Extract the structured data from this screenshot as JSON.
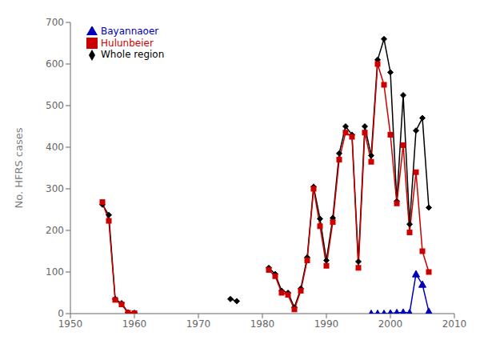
{
  "chart_data": {
    "type": "line",
    "ylabel": "No. HFRS cases",
    "xlim": [
      1950,
      2010
    ],
    "ylim": [
      0,
      700
    ],
    "xticks": [
      1950,
      1960,
      1970,
      1980,
      1990,
      2000,
      2010
    ],
    "yticks": [
      0,
      100,
      200,
      300,
      400,
      500,
      600,
      700
    ],
    "grid": false,
    "legend": "upper left",
    "x": [
      1955,
      1956,
      1957,
      1958,
      1959,
      1960,
      1961,
      1962,
      1963,
      1964,
      1965,
      1966,
      1967,
      1968,
      1969,
      1970,
      1971,
      1972,
      1973,
      1974,
      1975,
      1976,
      1977,
      1978,
      1979,
      1980,
      1981,
      1982,
      1983,
      1984,
      1985,
      1986,
      1987,
      1988,
      1989,
      1990,
      1991,
      1992,
      1993,
      1994,
      1995,
      1996,
      1997,
      1998,
      1999,
      2000,
      2001,
      2002,
      2003,
      2004,
      2005,
      2006
    ],
    "series": [
      {
        "name": "Whole region",
        "color": "#000000",
        "marker": "diamond",
        "values": [
          262,
          237,
          35,
          25,
          3,
          2,
          null,
          null,
          null,
          null,
          null,
          null,
          null,
          null,
          null,
          null,
          null,
          null,
          null,
          null,
          35,
          30,
          null,
          null,
          null,
          null,
          110,
          95,
          55,
          50,
          15,
          60,
          135,
          305,
          228,
          128,
          230,
          385,
          450,
          430,
          125,
          450,
          380,
          610,
          660,
          580,
          270,
          525,
          215,
          440,
          470,
          255
        ]
      },
      {
        "name": "Hulunbeier",
        "color": "#cc0000",
        "marker": "square",
        "values": [
          268,
          223,
          33,
          22,
          2,
          1,
          null,
          null,
          null,
          null,
          null,
          null,
          null,
          null,
          null,
          null,
          null,
          null,
          null,
          null,
          null,
          null,
          null,
          null,
          null,
          null,
          105,
          90,
          50,
          45,
          10,
          55,
          128,
          300,
          210,
          115,
          220,
          370,
          435,
          425,
          110,
          435,
          365,
          600,
          550,
          430,
          265,
          405,
          195,
          340,
          150,
          100
        ]
      },
      {
        "name": "Bayannaoer",
        "color": "#0000bb",
        "marker": "triangle",
        "values": [
          null,
          null,
          null,
          null,
          null,
          null,
          null,
          null,
          null,
          null,
          null,
          null,
          null,
          null,
          null,
          null,
          null,
          null,
          null,
          null,
          null,
          null,
          null,
          null,
          null,
          null,
          null,
          null,
          null,
          null,
          null,
          null,
          null,
          null,
          null,
          null,
          null,
          null,
          null,
          null,
          null,
          null,
          0,
          0,
          0,
          1,
          2,
          3,
          2,
          95,
          70,
          5
        ]
      }
    ]
  }
}
